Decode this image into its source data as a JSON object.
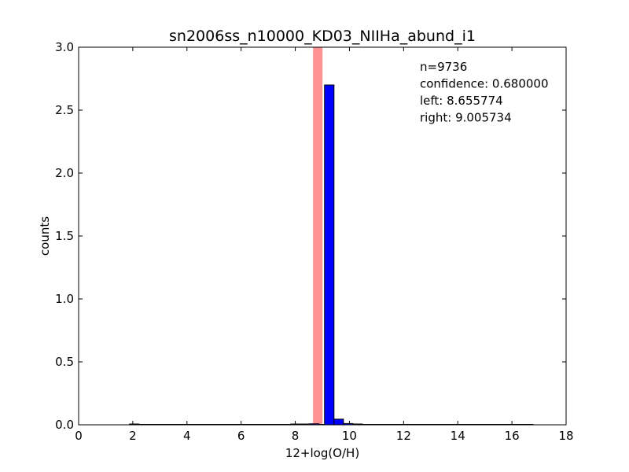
{
  "chart_data": {
    "type": "bar",
    "title": "sn2006ss_n10000_KD03_NIIHa_abund_i1",
    "xlabel": "12+log(O/H)",
    "ylabel": "counts",
    "xlim": [
      0,
      18
    ],
    "ylim": [
      0,
      3.0
    ],
    "xticks": [
      "0",
      "2",
      "4",
      "6",
      "8",
      "10",
      "12",
      "14",
      "16",
      "18"
    ],
    "yticks": [
      "0.0",
      "0.5",
      "1.0",
      "1.5",
      "2.0",
      "2.5",
      "3.0"
    ],
    "grid": false,
    "bin_width": 0.35,
    "bins": [
      {
        "x0": 1.88,
        "value": 0.002
      },
      {
        "x0": 7.83,
        "value": 0.002
      },
      {
        "x0": 8.18,
        "value": 0.003
      },
      {
        "x0": 8.53,
        "value": 0.008
      },
      {
        "x0": 8.88,
        "value": 0.0
      },
      {
        "x0": 9.08,
        "value": 2.7
      },
      {
        "x0": 9.43,
        "value": 0.045
      },
      {
        "x0": 9.78,
        "value": 0.01
      },
      {
        "x0": 10.13,
        "value": 0.002
      }
    ],
    "bar_color": "#0000ff",
    "baseline_range": [
      1.88,
      16.8
    ],
    "confidence_band": {
      "left": 8.655774,
      "right": 9.005734,
      "color": "#ff8080"
    },
    "annotations": [
      "n=9736",
      "confidence: 0.680000",
      "left: 8.655774",
      "right: 9.005734"
    ]
  }
}
